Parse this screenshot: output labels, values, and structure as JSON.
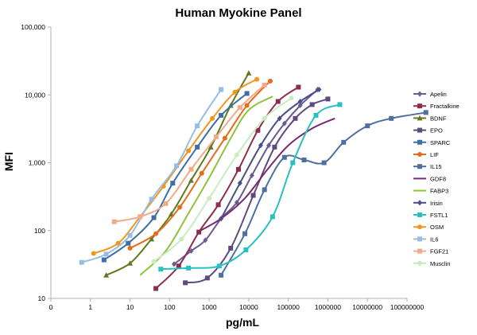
{
  "chart_data": {
    "type": "line",
    "title": "Human Myokine Panel",
    "xlabel": "pg/mL",
    "ylabel": "MFI",
    "x_scale": "log",
    "y_scale": "log",
    "xlim": [
      0.1,
      100000000
    ],
    "ylim": [
      10,
      100000
    ],
    "x_tick_labels": [
      "0",
      "1",
      "10",
      "100",
      "1000",
      "10000",
      "100000",
      "1000000",
      "10000000",
      "100000000"
    ],
    "y_tick_labels": [
      "10",
      "100",
      "1,000",
      "10,000",
      "100,000"
    ],
    "grid": false,
    "legend_position": "right",
    "series": [
      {
        "name": "Apelin",
        "color": "#6b5b95",
        "marker": "diamond",
        "x": [
          130,
          350,
          800,
          2000,
          5000,
          12000,
          32000,
          80000,
          200000,
          550000
        ],
        "y": [
          32,
          50,
          72,
          150,
          260,
          650,
          1800,
          3800,
          7000,
          12000
        ]
      },
      {
        "name": "Fractalkine",
        "color": "#8c2d4b",
        "marker": "square",
        "x": [
          45,
          170,
          550,
          1700,
          5500,
          17000,
          55000,
          180000
        ],
        "y": [
          14,
          30,
          95,
          240,
          800,
          3000,
          8000,
          13000
        ]
      },
      {
        "name": "BDNF",
        "color": "#5f7a1e",
        "marker": "triangle",
        "x": [
          2.5,
          10,
          35,
          110,
          350,
          1100,
          3500,
          10000
        ],
        "y": [
          22,
          33,
          75,
          175,
          550,
          1700,
          7000,
          21000
        ]
      },
      {
        "name": "EPO",
        "color": "#5e4a7f",
        "marker": "square",
        "x": [
          250,
          900,
          3500,
          13000,
          45000,
          150000,
          400000,
          1000000
        ],
        "y": [
          17,
          20,
          55,
          330,
          1700,
          4500,
          7200,
          8700
        ]
      },
      {
        "name": "SPARC",
        "color": "#3f6ea6",
        "marker": "square",
        "x": [
          2.2,
          9,
          40,
          120,
          500,
          2000,
          9000
        ],
        "y": [
          37,
          65,
          155,
          500,
          1700,
          5000,
          10500
        ]
      },
      {
        "name": "LIF",
        "color": "#e46c1b",
        "marker": "circle",
        "x": [
          10,
          45,
          180,
          650,
          2500,
          9000,
          35000
        ],
        "y": [
          55,
          90,
          220,
          700,
          2300,
          7000,
          16000
        ]
      },
      {
        "name": "IL15",
        "color": "#4f6fa0",
        "marker": "square",
        "x": [
          2000,
          8000,
          25000,
          80000,
          250000,
          800000,
          2500000,
          10000000,
          40000000,
          300000000
        ],
        "y": [
          22,
          90,
          400,
          1200,
          1100,
          1000,
          2000,
          3500,
          4500,
          5500
        ]
      },
      {
        "name": "GDF8",
        "color": "#7a2a73",
        "marker": "none",
        "x": [
          600,
          2000,
          8000,
          30000,
          100000,
          400000,
          1500000
        ],
        "y": [
          100,
          150,
          300,
          800,
          1800,
          3200,
          4500
        ]
      },
      {
        "name": "FABP3",
        "color": "#8fc33c",
        "marker": "none",
        "x": [
          18,
          80,
          300,
          1000,
          3500,
          10000,
          40000
        ],
        "y": [
          22,
          50,
          180,
          600,
          2300,
          6000,
          9500
        ]
      },
      {
        "name": "Irisin",
        "color": "#4a4f8a",
        "marker": "diamond",
        "x": [
          2000,
          6000,
          20000,
          60000,
          200000,
          600000
        ],
        "y": [
          150,
          500,
          1800,
          4500,
          8000,
          12000
        ]
      },
      {
        "name": "FSTL1",
        "color": "#28c0c0",
        "marker": "square",
        "x": [
          60,
          300,
          1800,
          8500,
          40000,
          130000,
          500000,
          2000000
        ],
        "y": [
          27,
          28,
          30,
          52,
          160,
          1000,
          5000,
          7200
        ]
      },
      {
        "name": "OSM",
        "color": "#f2951e",
        "marker": "circle",
        "x": [
          1.2,
          5,
          18,
          70,
          300,
          1200,
          4500,
          16000
        ],
        "y": [
          46,
          65,
          160,
          450,
          1500,
          4500,
          11000,
          17000
        ]
      },
      {
        "name": "IL6",
        "color": "#96bde6",
        "marker": "square",
        "x": [
          0.6,
          2.5,
          10,
          35,
          150,
          500,
          2000
        ],
        "y": [
          34,
          45,
          85,
          290,
          900,
          3500,
          12000
        ]
      },
      {
        "name": "FGF21",
        "color": "#f3a98a",
        "marker": "square",
        "x": [
          4,
          18,
          80,
          350,
          1500,
          6000,
          25000
        ],
        "y": [
          135,
          160,
          250,
          800,
          2400,
          6500,
          14000
        ]
      },
      {
        "name": "Musclin",
        "color": "#c9ebc0",
        "marker": "circle",
        "x": [
          40,
          200,
          1000,
          5000,
          25000,
          120000
        ],
        "y": [
          35,
          75,
          300,
          1300,
          4500,
          9000
        ]
      }
    ]
  }
}
